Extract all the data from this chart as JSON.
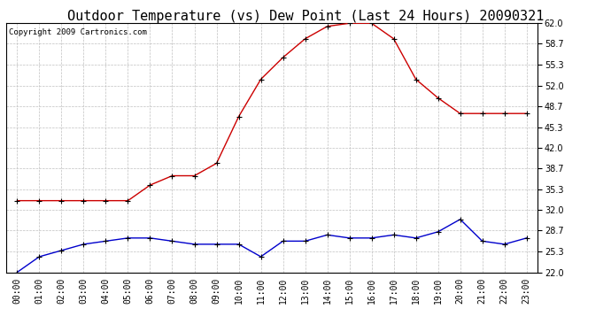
{
  "title": "Outdoor Temperature (vs) Dew Point (Last 24 Hours) 20090321",
  "copyright": "Copyright 2009 Cartronics.com",
  "hours": [
    "00:00",
    "01:00",
    "02:00",
    "03:00",
    "04:00",
    "05:00",
    "06:00",
    "07:00",
    "08:00",
    "09:00",
    "10:00",
    "11:00",
    "12:00",
    "13:00",
    "14:00",
    "15:00",
    "16:00",
    "17:00",
    "18:00",
    "19:00",
    "20:00",
    "21:00",
    "22:00",
    "23:00"
  ],
  "temp": [
    33.5,
    33.5,
    33.5,
    33.5,
    33.5,
    33.5,
    36.0,
    37.5,
    37.5,
    39.5,
    47.0,
    53.0,
    56.5,
    59.5,
    61.5,
    62.0,
    62.0,
    59.5,
    53.0,
    50.0,
    47.5,
    47.5,
    47.5,
    47.5
  ],
  "dew": [
    22.0,
    24.5,
    25.5,
    26.5,
    27.0,
    27.5,
    27.5,
    27.0,
    26.5,
    26.5,
    26.5,
    24.5,
    27.0,
    27.0,
    28.0,
    27.5,
    27.5,
    28.0,
    27.5,
    28.5,
    30.5,
    27.0,
    26.5,
    27.5
  ],
  "temp_color": "#cc0000",
  "dew_color": "#0000cc",
  "bg_color": "#ffffff",
  "grid_color": "#c0c0c0",
  "ylim_min": 22.0,
  "ylim_max": 62.0,
  "yticks": [
    22.0,
    25.3,
    28.7,
    32.0,
    35.3,
    38.7,
    42.0,
    45.3,
    48.7,
    52.0,
    55.3,
    58.7,
    62.0
  ],
  "title_fontsize": 11,
  "copyright_fontsize": 6.5,
  "tick_fontsize": 7,
  "marker_size": 4
}
